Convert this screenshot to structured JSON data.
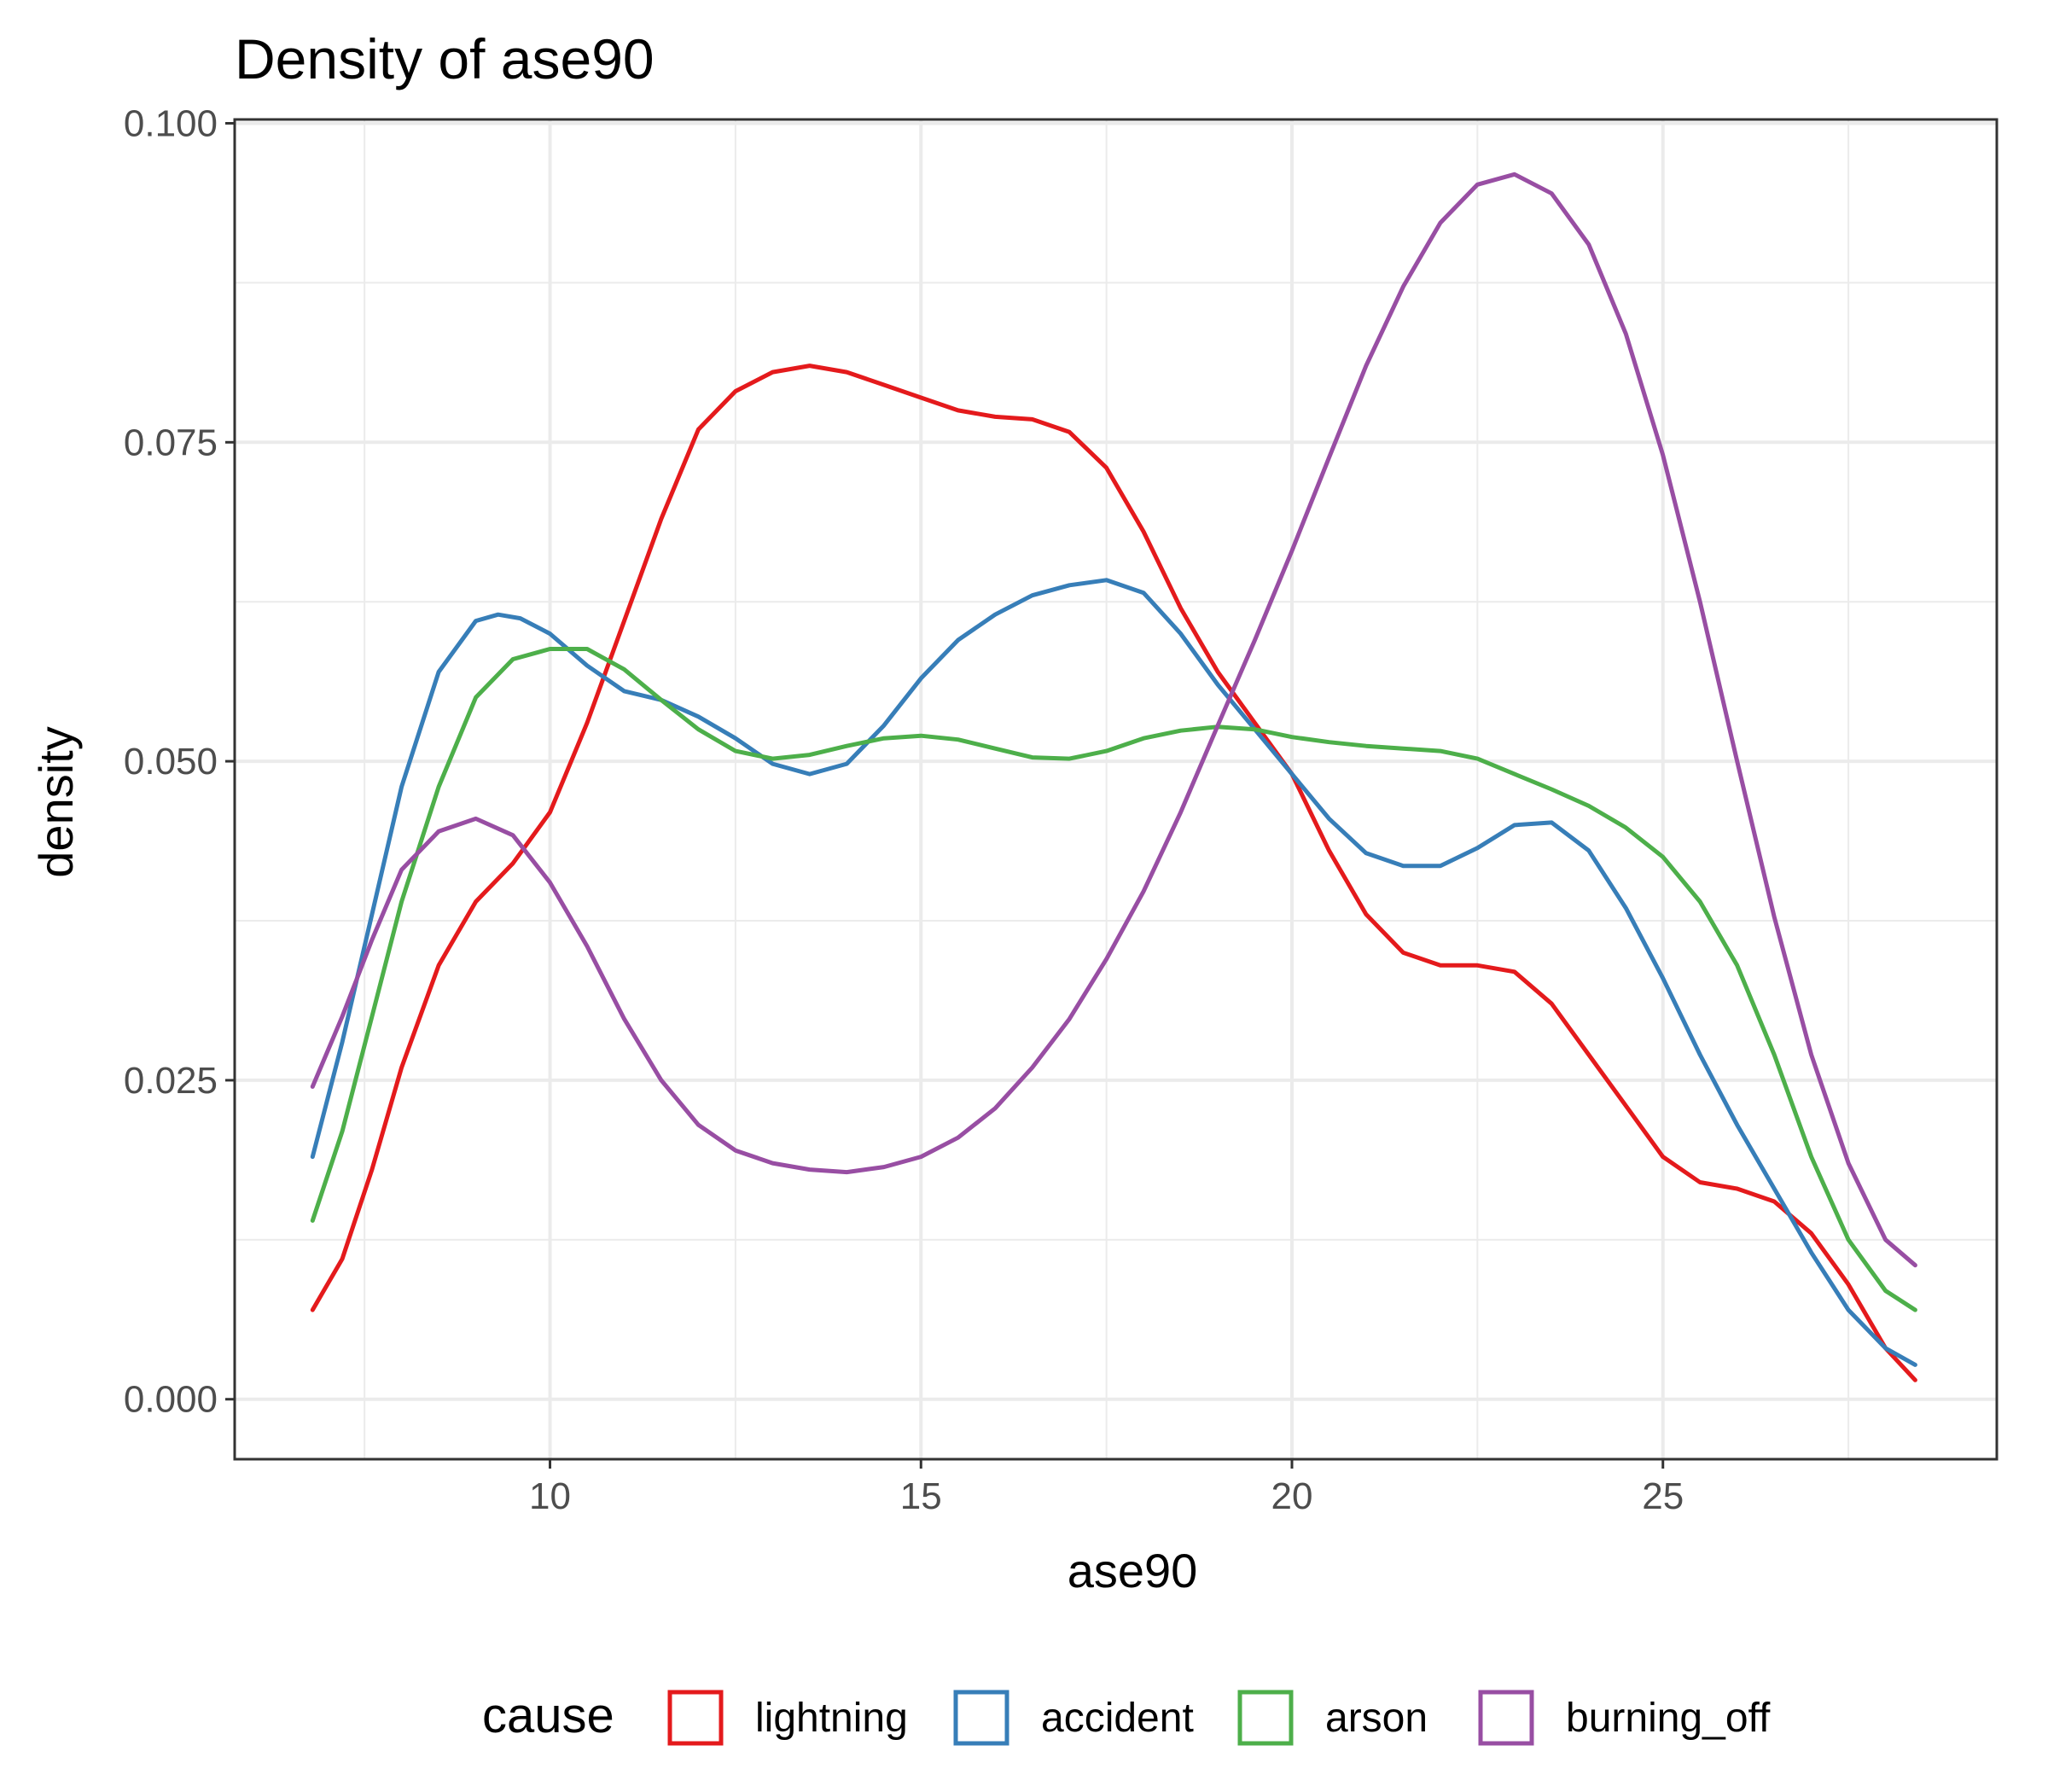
{
  "chart_data": {
    "type": "line",
    "title": "Density of ase90",
    "xlabel": "ase90",
    "ylabel": "density",
    "xlim": [
      5.75,
      29.5
    ],
    "ylim": [
      -0.0047,
      0.1003
    ],
    "x_ticks": [
      10,
      15,
      20,
      25
    ],
    "x_tick_labels": [
      "10",
      "15",
      "20",
      "25"
    ],
    "y_ticks": [
      0.0,
      0.025,
      0.05,
      0.075,
      0.1
    ],
    "y_tick_labels": [
      "0.000",
      "0.025",
      "0.050",
      "0.075",
      "0.100"
    ],
    "grid": true,
    "legend": {
      "title": "cause",
      "position": "bottom"
    },
    "series": [
      {
        "name": "lightning",
        "color": "#e41a1c",
        "points": [
          [
            6.8,
            0.007
          ],
          [
            7.2,
            0.011
          ],
          [
            7.6,
            0.018
          ],
          [
            8.0,
            0.026
          ],
          [
            8.5,
            0.034
          ],
          [
            9.0,
            0.039
          ],
          [
            9.5,
            0.042
          ],
          [
            10.0,
            0.046
          ],
          [
            10.5,
            0.053
          ],
          [
            11.0,
            0.061
          ],
          [
            11.5,
            0.069
          ],
          [
            12.0,
            0.076
          ],
          [
            12.5,
            0.079
          ],
          [
            13.0,
            0.0805
          ],
          [
            13.5,
            0.081
          ],
          [
            14.0,
            0.0805
          ],
          [
            14.5,
            0.0795
          ],
          [
            15.0,
            0.0785
          ],
          [
            15.5,
            0.0775
          ],
          [
            16.0,
            0.077
          ],
          [
            16.5,
            0.0768
          ],
          [
            17.0,
            0.0758
          ],
          [
            17.5,
            0.073
          ],
          [
            18.0,
            0.068
          ],
          [
            18.5,
            0.062
          ],
          [
            19.0,
            0.057
          ],
          [
            19.5,
            0.053
          ],
          [
            20.0,
            0.049
          ],
          [
            20.5,
            0.043
          ],
          [
            21.0,
            0.038
          ],
          [
            21.5,
            0.035
          ],
          [
            22.0,
            0.034
          ],
          [
            22.5,
            0.034
          ],
          [
            23.0,
            0.0335
          ],
          [
            23.5,
            0.031
          ],
          [
            24.0,
            0.027
          ],
          [
            24.5,
            0.023
          ],
          [
            25.0,
            0.019
          ],
          [
            25.5,
            0.017
          ],
          [
            26.0,
            0.0165
          ],
          [
            26.5,
            0.0155
          ],
          [
            27.0,
            0.013
          ],
          [
            27.5,
            0.009
          ],
          [
            28.0,
            0.004
          ],
          [
            28.4,
            0.0015
          ]
        ]
      },
      {
        "name": "accident",
        "color": "#377eb8",
        "points": [
          [
            6.8,
            0.019
          ],
          [
            7.2,
            0.028
          ],
          [
            7.6,
            0.038
          ],
          [
            8.0,
            0.048
          ],
          [
            8.5,
            0.057
          ],
          [
            9.0,
            0.061
          ],
          [
            9.3,
            0.0615
          ],
          [
            9.6,
            0.0612
          ],
          [
            10.0,
            0.06
          ],
          [
            10.5,
            0.0575
          ],
          [
            11.0,
            0.0555
          ],
          [
            11.5,
            0.0548
          ],
          [
            12.0,
            0.0535
          ],
          [
            12.5,
            0.0518
          ],
          [
            13.0,
            0.0498
          ],
          [
            13.5,
            0.049
          ],
          [
            14.0,
            0.0498
          ],
          [
            14.5,
            0.0528
          ],
          [
            15.0,
            0.0565
          ],
          [
            15.5,
            0.0595
          ],
          [
            16.0,
            0.0615
          ],
          [
            16.5,
            0.063
          ],
          [
            17.0,
            0.0638
          ],
          [
            17.5,
            0.0642
          ],
          [
            18.0,
            0.0632
          ],
          [
            18.5,
            0.06
          ],
          [
            19.0,
            0.056
          ],
          [
            19.5,
            0.0525
          ],
          [
            20.0,
            0.049
          ],
          [
            20.5,
            0.0455
          ],
          [
            21.0,
            0.0428
          ],
          [
            21.5,
            0.0418
          ],
          [
            22.0,
            0.0418
          ],
          [
            22.5,
            0.0432
          ],
          [
            23.0,
            0.045
          ],
          [
            23.5,
            0.0452
          ],
          [
            24.0,
            0.043
          ],
          [
            24.5,
            0.0385
          ],
          [
            25.0,
            0.033
          ],
          [
            25.5,
            0.027
          ],
          [
            26.0,
            0.0215
          ],
          [
            26.5,
            0.0165
          ],
          [
            27.0,
            0.0115
          ],
          [
            27.5,
            0.007
          ],
          [
            28.0,
            0.004
          ],
          [
            28.4,
            0.0027
          ]
        ]
      },
      {
        "name": "arson",
        "color": "#4daf4a",
        "points": [
          [
            6.8,
            0.014
          ],
          [
            7.2,
            0.021
          ],
          [
            7.6,
            0.03
          ],
          [
            8.0,
            0.039
          ],
          [
            8.5,
            0.048
          ],
          [
            9.0,
            0.055
          ],
          [
            9.5,
            0.058
          ],
          [
            10.0,
            0.0588
          ],
          [
            10.5,
            0.0588
          ],
          [
            11.0,
            0.0572
          ],
          [
            11.5,
            0.0548
          ],
          [
            12.0,
            0.0525
          ],
          [
            12.5,
            0.0508
          ],
          [
            13.0,
            0.0502
          ],
          [
            13.5,
            0.0505
          ],
          [
            14.0,
            0.0512
          ],
          [
            14.5,
            0.0518
          ],
          [
            15.0,
            0.052
          ],
          [
            15.5,
            0.0517
          ],
          [
            16.0,
            0.051
          ],
          [
            16.5,
            0.0503
          ],
          [
            17.0,
            0.0502
          ],
          [
            17.5,
            0.0508
          ],
          [
            18.0,
            0.0518
          ],
          [
            18.5,
            0.0524
          ],
          [
            19.0,
            0.0527
          ],
          [
            19.5,
            0.0525
          ],
          [
            20.0,
            0.0519
          ],
          [
            20.5,
            0.0515
          ],
          [
            21.0,
            0.0512
          ],
          [
            21.5,
            0.051
          ],
          [
            22.0,
            0.0508
          ],
          [
            22.5,
            0.0502
          ],
          [
            23.0,
            0.049
          ],
          [
            23.5,
            0.0478
          ],
          [
            24.0,
            0.0465
          ],
          [
            24.5,
            0.0448
          ],
          [
            25.0,
            0.0425
          ],
          [
            25.5,
            0.039
          ],
          [
            26.0,
            0.034
          ],
          [
            26.5,
            0.027
          ],
          [
            27.0,
            0.019
          ],
          [
            27.5,
            0.0125
          ],
          [
            28.0,
            0.0085
          ],
          [
            28.4,
            0.007
          ]
        ]
      },
      {
        "name": "burning_off",
        "color": "#984ea3",
        "points": [
          [
            6.8,
            0.0245
          ],
          [
            7.2,
            0.03
          ],
          [
            7.6,
            0.036
          ],
          [
            8.0,
            0.0415
          ],
          [
            8.5,
            0.0445
          ],
          [
            9.0,
            0.0455
          ],
          [
            9.5,
            0.0442
          ],
          [
            10.0,
            0.0405
          ],
          [
            10.5,
            0.0355
          ],
          [
            11.0,
            0.0298
          ],
          [
            11.5,
            0.025
          ],
          [
            12.0,
            0.0215
          ],
          [
            12.5,
            0.0195
          ],
          [
            13.0,
            0.0185
          ],
          [
            13.5,
            0.018
          ],
          [
            14.0,
            0.0178
          ],
          [
            14.5,
            0.0182
          ],
          [
            15.0,
            0.019
          ],
          [
            15.5,
            0.0205
          ],
          [
            16.0,
            0.0228
          ],
          [
            16.5,
            0.026
          ],
          [
            17.0,
            0.0298
          ],
          [
            17.5,
            0.0345
          ],
          [
            18.0,
            0.0398
          ],
          [
            18.5,
            0.046
          ],
          [
            19.0,
            0.0528
          ],
          [
            19.5,
            0.0595
          ],
          [
            20.0,
            0.0665
          ],
          [
            20.5,
            0.0738
          ],
          [
            21.0,
            0.081
          ],
          [
            21.5,
            0.0872
          ],
          [
            22.0,
            0.0922
          ],
          [
            22.5,
            0.0952
          ],
          [
            23.0,
            0.096
          ],
          [
            23.5,
            0.0945
          ],
          [
            24.0,
            0.0905
          ],
          [
            24.5,
            0.0835
          ],
          [
            25.0,
            0.074
          ],
          [
            25.5,
            0.0625
          ],
          [
            26.0,
            0.05
          ],
          [
            26.5,
            0.0378
          ],
          [
            27.0,
            0.027
          ],
          [
            27.5,
            0.0185
          ],
          [
            28.0,
            0.0125
          ],
          [
            28.4,
            0.0105
          ]
        ]
      }
    ]
  }
}
